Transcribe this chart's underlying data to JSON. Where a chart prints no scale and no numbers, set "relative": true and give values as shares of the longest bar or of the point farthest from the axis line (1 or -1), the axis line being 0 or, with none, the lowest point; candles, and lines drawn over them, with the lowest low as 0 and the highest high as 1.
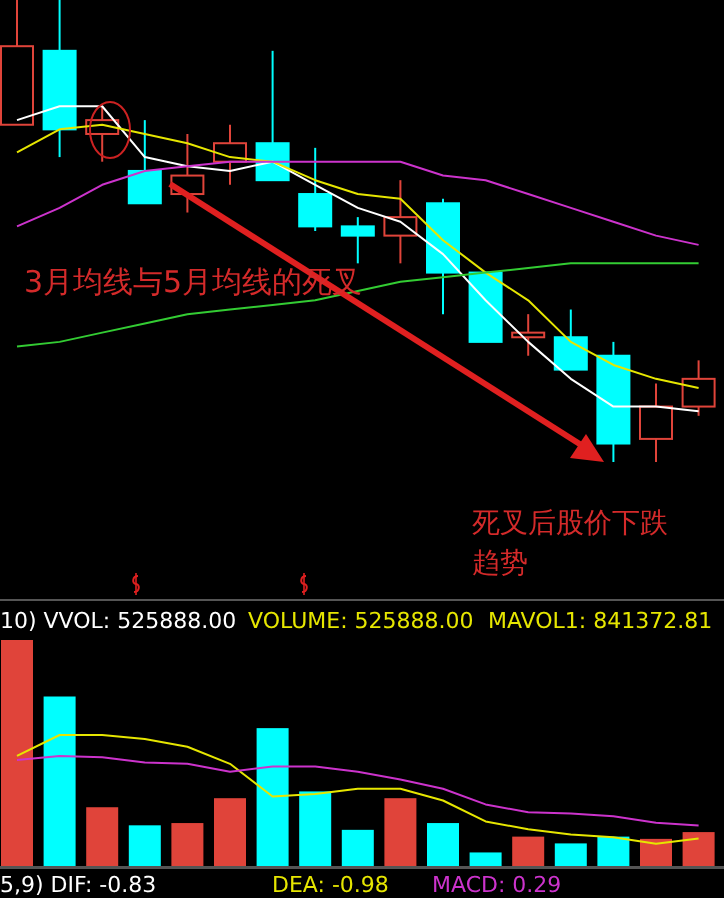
{
  "chart_data": [
    {
      "type": "candlestick",
      "relative": true,
      "categories": [
        null,
        null,
        null,
        null,
        null,
        null,
        null,
        null,
        null,
        null,
        null,
        null,
        null,
        null,
        null,
        null,
        null
      ],
      "ohlc": [
        [
          0.73,
          1.0,
          0.73,
          0.9
        ],
        [
          0.89,
          1.0,
          0.66,
          0.72
        ],
        [
          0.71,
          0.77,
          0.65,
          0.74
        ],
        [
          0.63,
          0.74,
          0.56,
          0.56
        ],
        [
          0.58,
          0.71,
          0.54,
          0.62
        ],
        [
          0.65,
          0.73,
          0.6,
          0.69
        ],
        [
          0.69,
          0.89,
          0.61,
          0.61
        ],
        [
          0.58,
          0.68,
          0.5,
          0.51
        ],
        [
          0.51,
          0.53,
          0.43,
          0.49
        ],
        [
          0.49,
          0.61,
          0.43,
          0.53
        ],
        [
          0.56,
          0.57,
          0.32,
          0.41
        ],
        [
          0.41,
          0.41,
          0.26,
          0.26
        ],
        [
          0.27,
          0.32,
          0.23,
          0.28
        ],
        [
          0.27,
          0.33,
          0.2,
          0.2
        ],
        [
          0.23,
          0.26,
          0.0,
          0.04
        ],
        [
          0.05,
          0.17,
          0.0,
          0.12
        ],
        [
          0.12,
          0.22,
          0.1,
          0.18
        ]
      ],
      "series": [
        {
          "type": "line",
          "color": "#ffffff",
          "values": [
            0.74,
            0.77,
            0.77,
            0.66,
            0.64,
            0.63,
            0.65,
            0.6,
            0.55,
            0.52,
            0.45,
            0.35,
            0.26,
            0.18,
            0.12,
            0.12,
            0.11
          ]
        },
        {
          "type": "line",
          "color": "#e6e600",
          "values": [
            0.67,
            0.72,
            0.73,
            0.71,
            0.69,
            0.66,
            0.65,
            0.61,
            0.58,
            0.57,
            0.48,
            0.41,
            0.35,
            0.26,
            0.21,
            0.18,
            0.16
          ]
        },
        {
          "type": "line",
          "color": "#cc33cc",
          "values": [
            0.51,
            0.55,
            0.6,
            0.63,
            0.64,
            0.65,
            0.65,
            0.65,
            0.65,
            0.65,
            0.62,
            0.61,
            0.58,
            0.55,
            0.52,
            0.49,
            0.47
          ]
        },
        {
          "type": "line",
          "color": "#33cc33",
          "values": [
            0.25,
            0.26,
            0.28,
            0.3,
            0.32,
            0.33,
            0.34,
            0.35,
            0.37,
            0.39,
            0.4,
            0.41,
            0.42,
            0.43,
            0.43,
            0.43,
            0.43
          ]
        }
      ],
      "annotations": [
        "3月均线与5月均线的死叉",
        "死叉后股价下跌趋势"
      ]
    },
    {
      "type": "bar",
      "relative": true,
      "categories": [
        null,
        null,
        null,
        null,
        null,
        null,
        null,
        null,
        null,
        null,
        null,
        null,
        null,
        null,
        null,
        null,
        null
      ],
      "values": [
        1.0,
        0.75,
        0.26,
        0.18,
        0.19,
        0.3,
        0.61,
        0.33,
        0.16,
        0.3,
        0.19,
        0.06,
        0.13,
        0.1,
        0.13,
        0.12,
        0.15
      ],
      "colors": [
        "#e0443a",
        "#00ffff",
        "#e0443a",
        "#00ffff",
        "#e0443a",
        "#e0443a",
        "#00ffff",
        "#00ffff",
        "#00ffff",
        "#e0443a",
        "#00ffff",
        "#00ffff",
        "#e0443a",
        "#00ffff",
        "#00ffff",
        "#e0443a",
        "#e0443a"
      ],
      "annotations": [
        "10) VVOL: 525888.00",
        "VOLUME: 525888.00",
        "MAVOL1: 841372.81",
        "5,9) DIF: -0.83",
        "DEA: -0.98",
        "MACD: 0.29"
      ]
    },
    {
      "type": "line",
      "relative": true,
      "categories": [
        null,
        null,
        null,
        null,
        null,
        null,
        null,
        null,
        null,
        null,
        null,
        null,
        null,
        null,
        null,
        null,
        null
      ],
      "series": [
        {
          "color": "#e6e600",
          "values": [
            0.84,
            1.0,
            1.0,
            0.97,
            0.91,
            0.78,
            0.53,
            0.55,
            0.59,
            0.59,
            0.5,
            0.34,
            0.28,
            0.24,
            0.22,
            0.17,
            0.21
          ]
        },
        {
          "color": "#cc33cc",
          "values": [
            0.81,
            0.84,
            0.83,
            0.79,
            0.78,
            0.72,
            0.76,
            0.76,
            0.72,
            0.66,
            0.59,
            0.47,
            0.41,
            0.4,
            0.38,
            0.33,
            0.31
          ]
        }
      ]
    }
  ]
}
